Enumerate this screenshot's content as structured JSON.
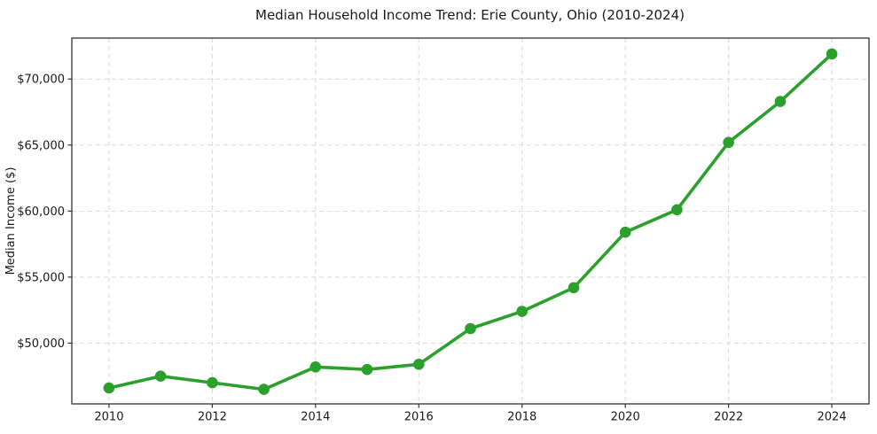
{
  "chart_data": {
    "type": "line",
    "title": "Median Household Income Trend: Erie County, Ohio (2010-2024)",
    "xlabel": "",
    "ylabel": "Median Income ($)",
    "x": [
      2010,
      2011,
      2012,
      2013,
      2014,
      2015,
      2016,
      2017,
      2018,
      2019,
      2020,
      2021,
      2022,
      2023,
      2024
    ],
    "series": [
      {
        "name": "Median Household Income",
        "color": "#2ca02c",
        "values": [
          46600,
          47500,
          47000,
          46500,
          48200,
          48000,
          48400,
          51100,
          52400,
          54200,
          58400,
          60100,
          65200,
          68300,
          71900
        ]
      }
    ],
    "xticks": {
      "values": [
        2010,
        2012,
        2014,
        2016,
        2018,
        2020,
        2022,
        2024
      ],
      "labels": [
        "2010",
        "2012",
        "2014",
        "2016",
        "2018",
        "2020",
        "2022",
        "2024"
      ]
    },
    "yticks": {
      "values": [
        50000,
        55000,
        60000,
        65000,
        70000
      ],
      "labels": [
        "$50,000",
        "$55,000",
        "$60,000",
        "$65,000",
        "$70,000"
      ]
    },
    "xlim": [
      2009.28,
      2024.72
    ],
    "ylim": [
      45400,
      73100
    ],
    "grid": true,
    "legend_position": "none",
    "colors": {
      "line": "#2ca02c",
      "grid": "#d9d9d9",
      "axis": "#333333",
      "text": "#1a1a1a",
      "background": "#ffffff"
    }
  }
}
